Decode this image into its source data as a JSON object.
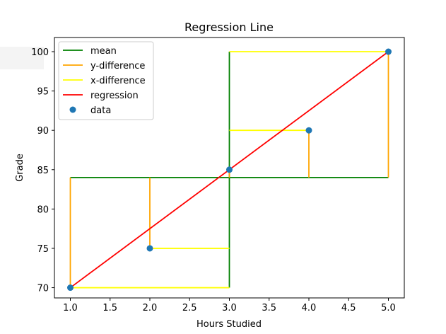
{
  "chart_data": {
    "type": "scatter",
    "title": "Regression Line",
    "xlabel": "Hours Studied",
    "ylabel": "Grade",
    "xlim": [
      0.8,
      5.2
    ],
    "ylim": [
      68.7,
      101.8
    ],
    "xticks": [
      1.0,
      1.5,
      2.0,
      2.5,
      3.0,
      3.5,
      4.0,
      4.5,
      5.0
    ],
    "xtick_labels": [
      "1.0",
      "1.5",
      "2.0",
      "2.5",
      "3.0",
      "3.5",
      "4.0",
      "4.5",
      "5.0"
    ],
    "yticks": [
      70,
      75,
      80,
      85,
      90,
      95,
      100
    ],
    "ytick_labels": [
      "70",
      "75",
      "80",
      "85",
      "90",
      "95",
      "100"
    ],
    "grid": false,
    "legend_position": "upper-left",
    "colors": {
      "mean": "#008000",
      "y_difference": "#ffa500",
      "x_difference": "#ffff00",
      "regression": "#ff0000",
      "data": "#1f77b4"
    },
    "data": {
      "name": "data",
      "x": [
        1,
        2,
        3,
        4,
        5
      ],
      "y": [
        70,
        75,
        85,
        90,
        100
      ]
    },
    "regression": {
      "name": "regression",
      "x": [
        1,
        5
      ],
      "y": [
        70,
        100
      ]
    },
    "mean": {
      "name": "mean",
      "segments": [
        {
          "x": [
            1,
            5
          ],
          "y": [
            84,
            84
          ]
        },
        {
          "x": [
            3,
            3
          ],
          "y": [
            70,
            100
          ]
        }
      ]
    },
    "y_difference": {
      "name": "y-difference",
      "segments": [
        {
          "x": [
            1,
            1
          ],
          "y": [
            70,
            84
          ]
        },
        {
          "x": [
            2,
            2
          ],
          "y": [
            75,
            84
          ]
        },
        {
          "x": [
            3,
            3
          ],
          "y": [
            85,
            84
          ]
        },
        {
          "x": [
            4,
            4
          ],
          "y": [
            90,
            84
          ]
        },
        {
          "x": [
            5,
            5
          ],
          "y": [
            100,
            84
          ]
        }
      ]
    },
    "x_difference": {
      "name": "x-difference",
      "segments": [
        {
          "x": [
            1,
            3
          ],
          "y": [
            70,
            70
          ]
        },
        {
          "x": [
            2,
            3
          ],
          "y": [
            75,
            75
          ]
        },
        {
          "x": [
            3,
            3
          ],
          "y": [
            85,
            85
          ]
        },
        {
          "x": [
            4,
            3
          ],
          "y": [
            90,
            90
          ]
        },
        {
          "x": [
            5,
            3
          ],
          "y": [
            100,
            100
          ]
        }
      ]
    },
    "legend": [
      "mean",
      "y-difference",
      "x-difference",
      "regression",
      "data"
    ]
  }
}
